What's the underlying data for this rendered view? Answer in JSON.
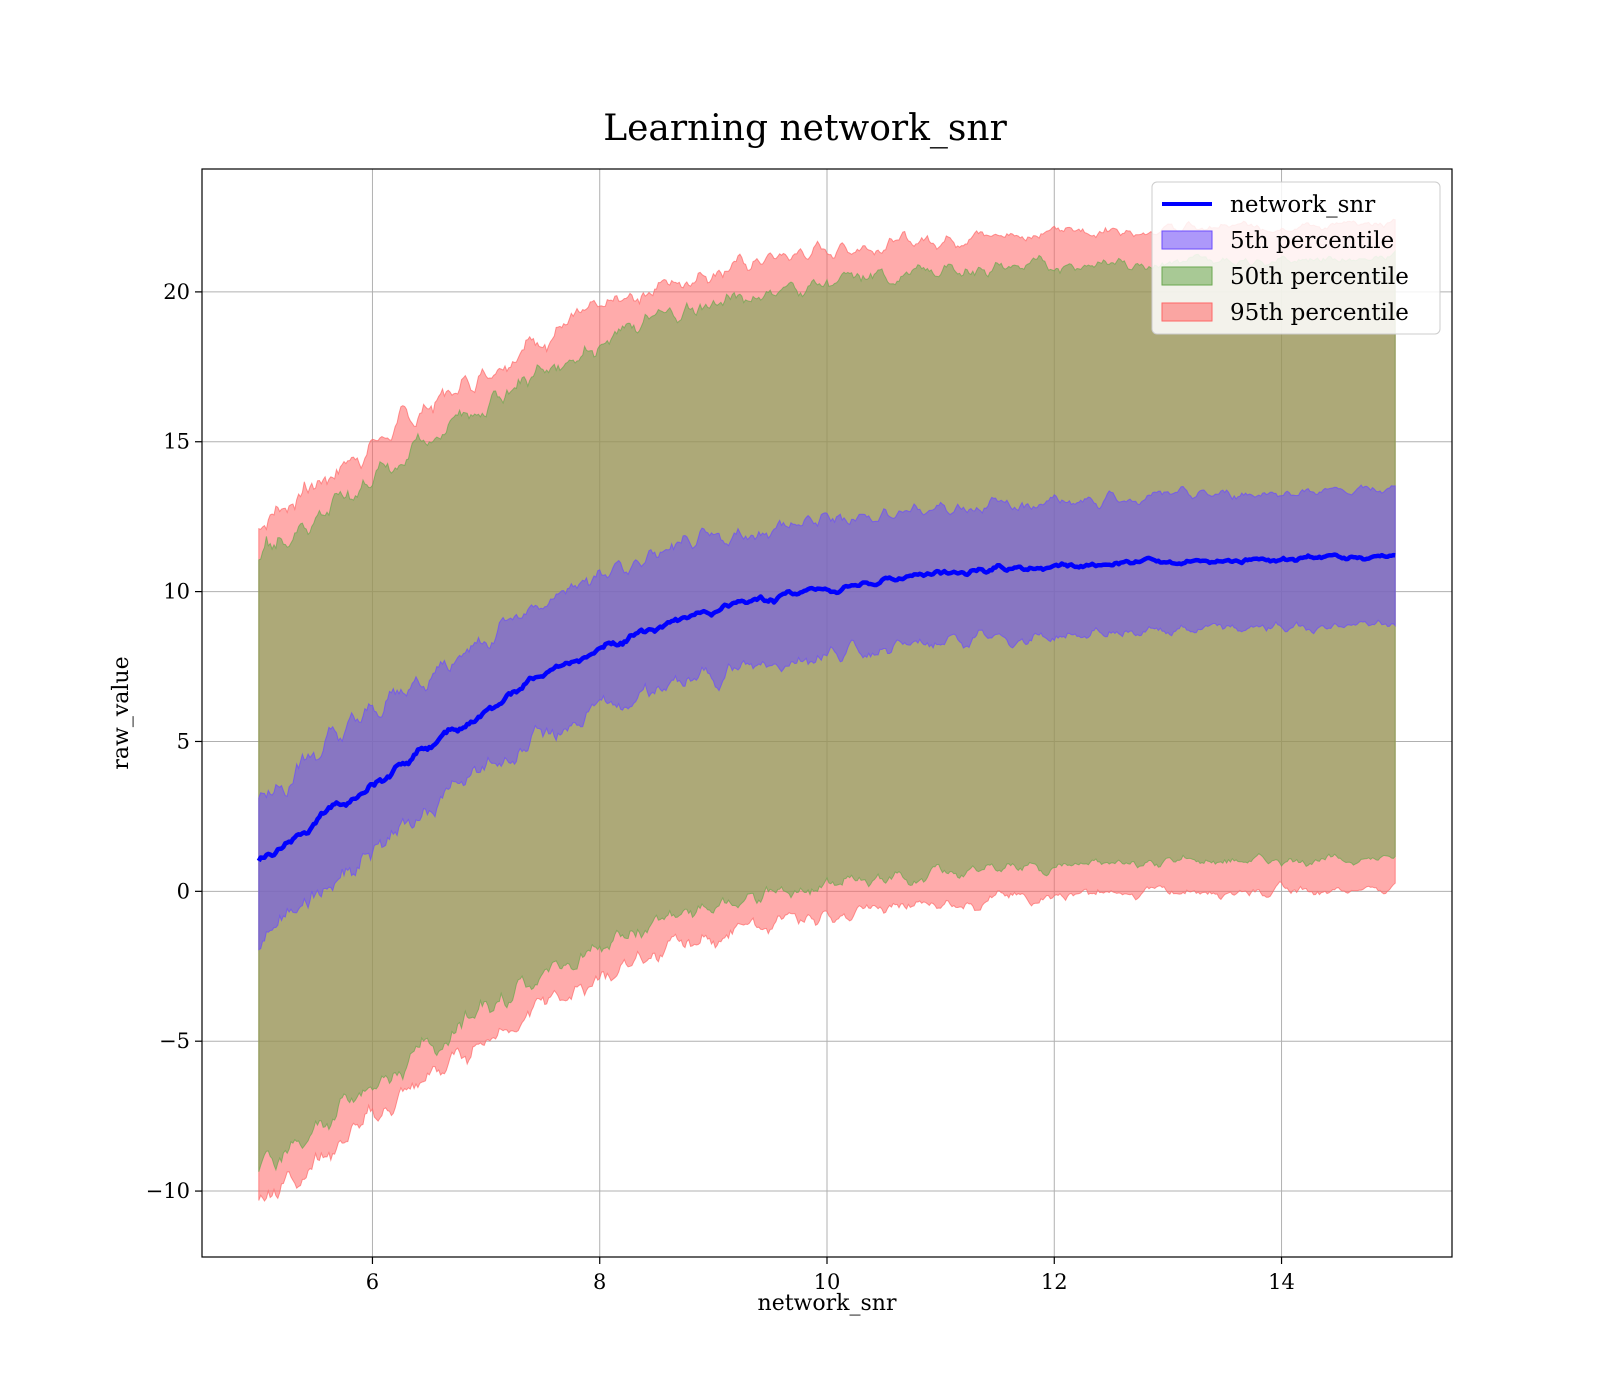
{
  "chart_data": {
    "type": "area",
    "title": "Learning network_snr",
    "xlabel": "network_snr",
    "ylabel": "raw_value",
    "xlim": [
      4.5,
      15.5
    ],
    "ylim": [
      -12.2,
      24.1
    ],
    "xticks": [
      6,
      8,
      10,
      12,
      14
    ],
    "yticks": [
      -10,
      -5,
      0,
      5,
      10,
      15,
      20
    ],
    "ytick_labels": [
      "−10",
      "−5",
      "0",
      "5",
      "10",
      "15",
      "20"
    ],
    "grid": true,
    "legend_position": "top-right",
    "x": [
      5.0,
      5.5,
      6.0,
      6.5,
      7.0,
      7.5,
      8.0,
      8.5,
      9.0,
      9.5,
      10.0,
      10.5,
      11.0,
      11.5,
      12.0,
      12.5,
      13.0,
      13.5,
      14.0,
      14.5,
      15.0
    ],
    "line": {
      "name": "network_snr",
      "color": "#0000ff",
      "values": [
        1.0,
        2.3,
        3.7,
        4.9,
        6.0,
        7.2,
        8.1,
        8.8,
        9.4,
        9.8,
        10.1,
        10.4,
        10.6,
        10.75,
        10.85,
        10.95,
        11.0,
        11.05,
        11.1,
        11.15,
        11.2
      ]
    },
    "bands": [
      {
        "name": "95th percentile",
        "color": "#ff6666",
        "upper": [
          12.3,
          13.6,
          14.9,
          16.2,
          17.4,
          18.5,
          19.4,
          20.2,
          20.7,
          21.1,
          21.4,
          21.6,
          21.8,
          21.9,
          22.0,
          22.05,
          22.1,
          22.15,
          22.2,
          22.2,
          22.3
        ],
        "lower": [
          -10.2,
          -9.0,
          -7.6,
          -6.2,
          -4.9,
          -3.8,
          -2.9,
          -2.1,
          -1.5,
          -1.1,
          -0.8,
          -0.6,
          -0.4,
          -0.25,
          -0.15,
          -0.1,
          0.0,
          0.0,
          0.05,
          0.05,
          0.1
        ]
      },
      {
        "name": "50th percentile",
        "color": "#6aa84f",
        "upper": [
          11.3,
          12.5,
          13.8,
          15.1,
          16.3,
          17.4,
          18.3,
          19.1,
          19.6,
          20.0,
          20.3,
          20.5,
          20.7,
          20.8,
          20.9,
          20.95,
          21.0,
          21.05,
          21.1,
          21.1,
          21.2
        ],
        "lower": [
          -9.2,
          -8.0,
          -6.6,
          -5.2,
          -3.9,
          -2.8,
          -1.9,
          -1.1,
          -0.5,
          -0.1,
          0.2,
          0.4,
          0.6,
          0.75,
          0.85,
          0.9,
          1.0,
          1.0,
          1.05,
          1.05,
          1.1
        ]
      },
      {
        "name": "5th percentile",
        "color": "#6a4cff",
        "upper": [
          3.2,
          4.6,
          6.0,
          7.3,
          8.5,
          9.6,
          10.5,
          11.2,
          11.7,
          12.1,
          12.4,
          12.6,
          12.8,
          12.9,
          13.0,
          13.1,
          13.2,
          13.25,
          13.3,
          13.35,
          13.4
        ],
        "lower": [
          -1.4,
          -0.1,
          1.4,
          2.8,
          4.1,
          5.1,
          6.0,
          6.7,
          7.2,
          7.6,
          7.9,
          8.1,
          8.3,
          8.4,
          8.5,
          8.6,
          8.7,
          8.75,
          8.8,
          8.85,
          8.9
        ]
      }
    ],
    "legend": [
      {
        "label": "network_snr",
        "kind": "line",
        "color": "#0000ff"
      },
      {
        "label": "5th percentile",
        "kind": "patch",
        "color": "#6a4cff"
      },
      {
        "label": "50th percentile",
        "kind": "patch",
        "color": "#6aa84f"
      },
      {
        "label": "95th percentile",
        "kind": "patch",
        "color": "#ff6666"
      }
    ]
  }
}
